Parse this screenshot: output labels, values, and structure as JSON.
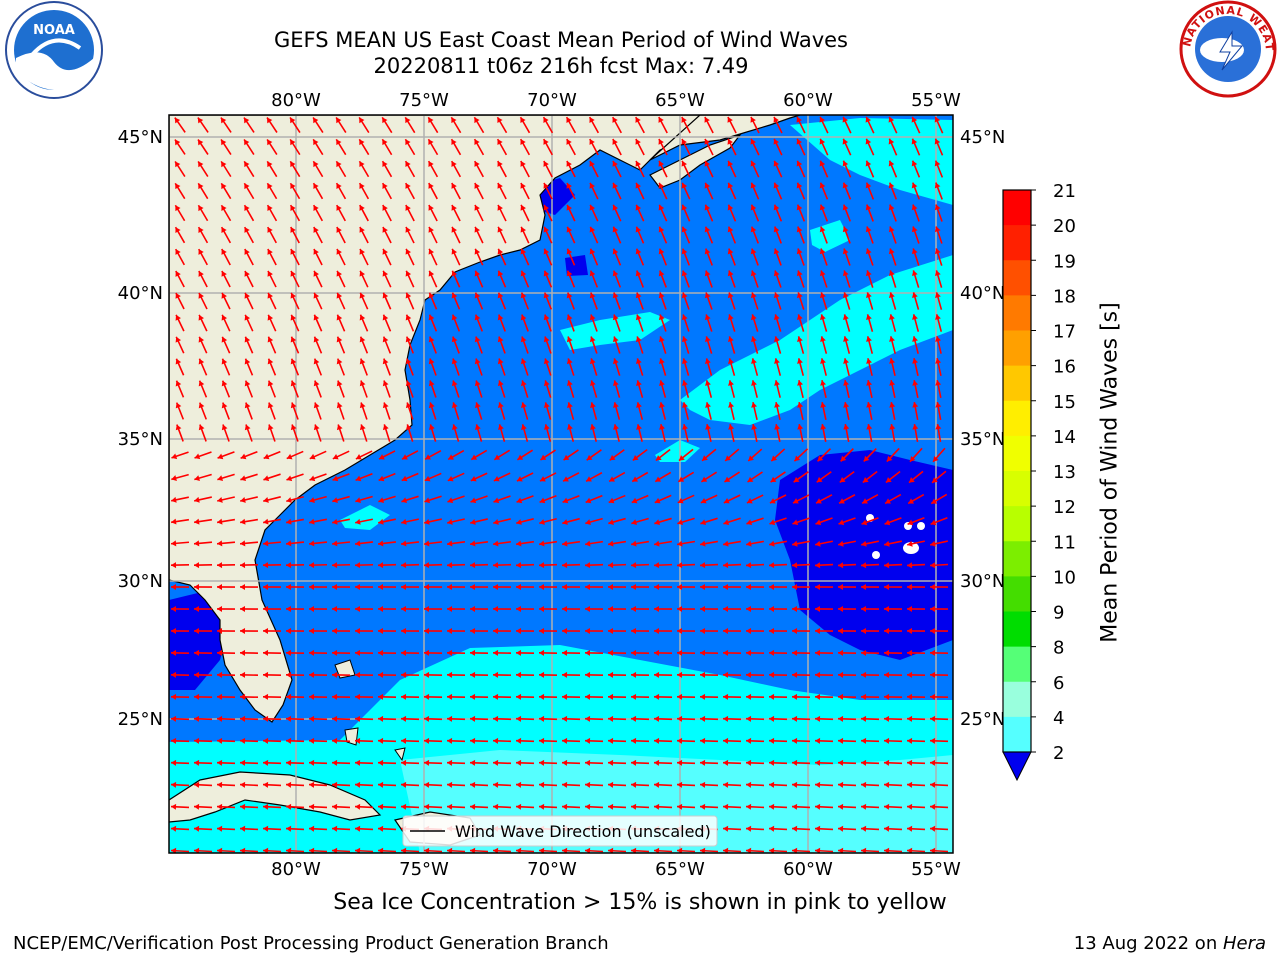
{
  "header": {
    "title_line1": "GEFS MEAN US East Coast Mean Period of Wind Waves",
    "title_line2": "20220811 t06z 216h fcst   Max: 7.49"
  },
  "logos": {
    "left_text": "NOAA",
    "right_text": "NATIONAL WEATHER SERVICE"
  },
  "map": {
    "lon_labels": [
      "80°W",
      "75°W",
      "70°W",
      "65°W",
      "60°W",
      "55°W"
    ],
    "lat_labels": [
      "45°N",
      "40°N",
      "35°N",
      "30°N",
      "25°N"
    ],
    "legend_label": "Wind Wave Direction (unscaled)",
    "land_color": "#eeeedc",
    "arrow_color": "#ff0000"
  },
  "colorbar": {
    "label": "Mean Period of Wind Waves [s]",
    "ticks": [
      "21",
      "20",
      "19",
      "18",
      "17",
      "16",
      "15",
      "14",
      "13",
      "12",
      "11",
      "10",
      "9",
      "8",
      "6",
      "4",
      "2"
    ],
    "colors": [
      "#ff0000",
      "#ff2000",
      "#ff5000",
      "#ff7a00",
      "#ffa000",
      "#ffc800",
      "#ffee00",
      "#f0ff00",
      "#d8ff00",
      "#b8ff00",
      "#7cee00",
      "#44dd00",
      "#00dd00",
      "#55ff77",
      "#99ffdd",
      "#55ffff",
      "#00ffff",
      "#0078ff",
      "#0000ee"
    ]
  },
  "caption": "Sea Ice Concentration > 15% is shown in pink to yellow",
  "footer": {
    "left": "NCEP/EMC/Verification Post Processing Product Generation Branch",
    "right_date": "13 Aug 2022 on ",
    "right_machine": "Hera"
  }
}
